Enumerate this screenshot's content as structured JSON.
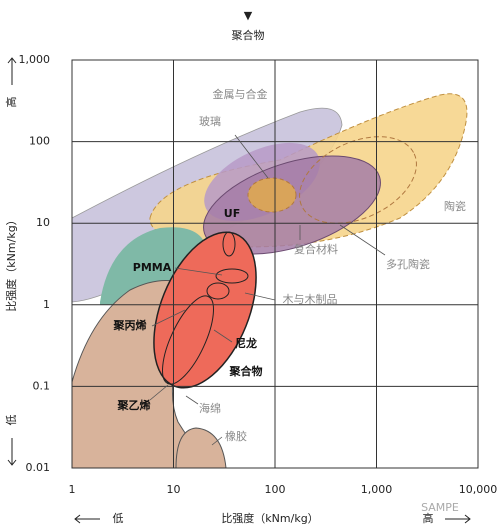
{
  "chart_data": {
    "type": "region-map",
    "top_marker": "▼",
    "top_label": "聚合物",
    "xlabel": "比强度（kNm/kg）",
    "ylabel": "比强度（kNm/kg）",
    "x_low": "低",
    "x_high": "高",
    "y_high": "高",
    "y_low": "低",
    "xlim": [
      1,
      10000
    ],
    "ylim": [
      0.01,
      1000
    ],
    "log_scale": true,
    "grid": true,
    "xticks": [
      1,
      10,
      100,
      {
        "value": 1000,
        "label": "1,000"
      },
      {
        "value": 10000,
        "label": "10,000"
      }
    ],
    "yticks": [
      0.01,
      0.1,
      1,
      10,
      100,
      {
        "value": 1000,
        "label": "1,000"
      }
    ],
    "annotations": [
      "金属与合金",
      "玻璃",
      "陶瓷",
      "UF",
      "PMMA",
      "复合材料",
      "多孔陶瓷",
      "聚丙烯",
      "木与木制品",
      "尼龙",
      "聚合物",
      "聚乙烯",
      "海绵",
      "橡胶"
    ],
    "watermark": "SAMPE"
  }
}
